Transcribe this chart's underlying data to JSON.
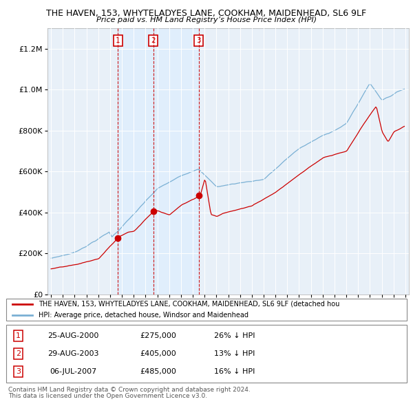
{
  "title1": "THE HAVEN, 153, WHYTELADYES LANE, COOKHAM, MAIDENHEAD, SL6 9LF",
  "title2": "Price paid vs. HM Land Registry’s House Price Index (HPI)",
  "legend_red": "THE HAVEN, 153, WHYTELADYES LANE, COOKHAM, MAIDENHEAD, SL6 9LF (detached hou",
  "legend_blue": "HPI: Average price, detached house, Windsor and Maidenhead",
  "footer1": "Contains HM Land Registry data © Crown copyright and database right 2024.",
  "footer2": "This data is licensed under the Open Government Licence v3.0.",
  "sales": [
    {
      "num": 1,
      "date": "25-AUG-2000",
      "price": 275000,
      "pct": "26%",
      "year": 2000.65
    },
    {
      "num": 2,
      "date": "29-AUG-2003",
      "price": 405000,
      "pct": "13%",
      "year": 2003.65
    },
    {
      "num": 3,
      "date": "06-JUL-2007",
      "price": 485000,
      "pct": "16%",
      "year": 2007.5
    }
  ],
  "red_color": "#cc0000",
  "blue_color": "#7ab0d4",
  "shade_color": "#ddeeff",
  "marker_color": "#cc0000",
  "ylim": [
    0,
    1300000
  ],
  "xlim_start": 1994.7,
  "xlim_end": 2025.3,
  "chart_bg": "#e8f0f8"
}
